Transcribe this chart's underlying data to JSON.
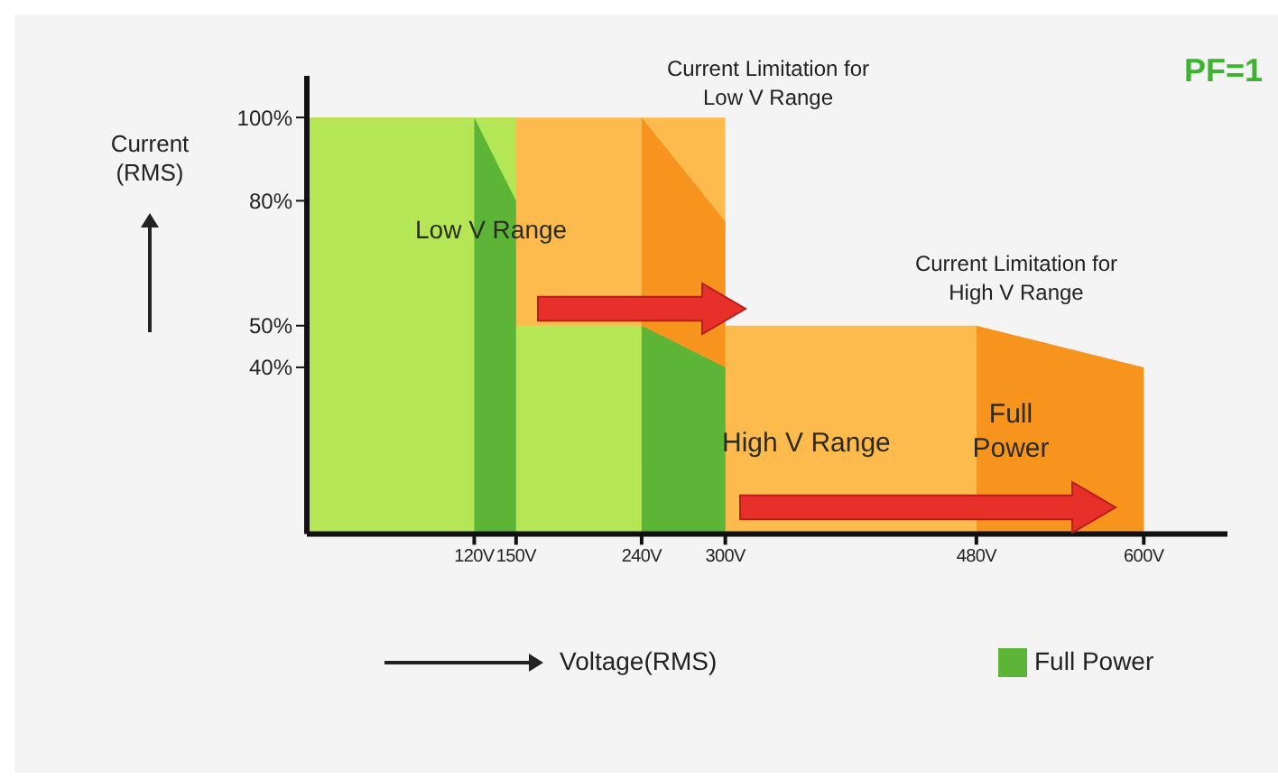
{
  "chart_data": {
    "type": "area",
    "xlabel": "Voltage(RMS)",
    "ylabel": "Current (RMS)",
    "xlim": [
      0,
      660
    ],
    "ylim": [
      0,
      110
    ],
    "xticks": [
      {
        "value": 120,
        "label": "120V"
      },
      {
        "value": 150,
        "label": "150V"
      },
      {
        "value": 240,
        "label": "240V"
      },
      {
        "value": 300,
        "label": "300V"
      },
      {
        "value": 480,
        "label": "480V"
      },
      {
        "value": 600,
        "label": "600V"
      }
    ],
    "yticks": [
      {
        "value": 40,
        "label": "40%"
      },
      {
        "value": 50,
        "label": "50%"
      },
      {
        "value": 80,
        "label": "80%"
      },
      {
        "value": 100,
        "label": "100%"
      }
    ],
    "grid": false,
    "legend": "bottom right",
    "series": [
      {
        "color": "#fdbb4d",
        "x": [
          0,
          300,
          300,
          480
        ],
        "values": [
          100,
          100,
          50,
          50
        ]
      },
      {
        "color": "#f7941d",
        "x": [
          240,
          300,
          390,
          480,
          600
        ],
        "values": [
          100,
          75,
          null,
          50,
          40
        ]
      },
      {
        "color": "#b5e655",
        "x": [
          0,
          150,
          150,
          240
        ],
        "values": [
          100,
          100,
          50,
          50
        ]
      },
      {
        "name": "Full Power",
        "color": "#5cb536",
        "x": [
          120,
          150,
          195,
          240,
          300
        ],
        "values": [
          100,
          80,
          null,
          50,
          40
        ]
      }
    ],
    "annotations": [
      "Current Limitation for Low V Range",
      "Current Limitation for High V Range",
      "Low V Range",
      "High V Range",
      "Full Power",
      "PF=1"
    ]
  }
}
